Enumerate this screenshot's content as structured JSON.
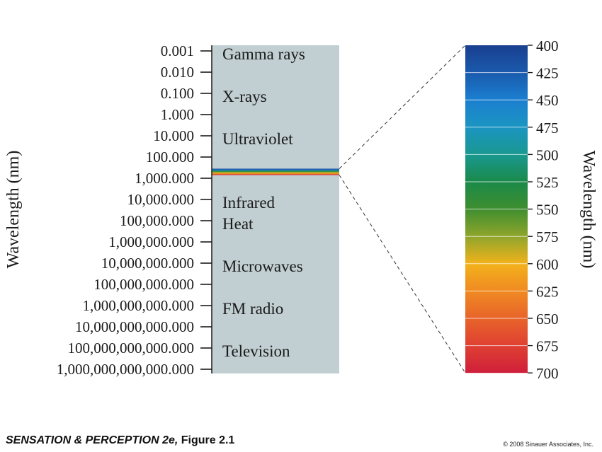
{
  "left_axis": {
    "label": "Wavelength (nm)",
    "ticks": [
      "0.001",
      "0.010",
      "0.100",
      "1.000",
      "10.000",
      "100.000",
      "1,000.000",
      "10,000.000",
      "100,000.000",
      "1,000,000.000",
      "10,000,000.000",
      "100,000,000.000",
      "1,000,000,000.000",
      "10,000,000,000.000",
      "100,000,000,000.000",
      "1,000,000,000,000.000"
    ]
  },
  "bands": [
    {
      "label": "Gamma rays",
      "tick": 0
    },
    {
      "label": "X-rays",
      "tick": 2
    },
    {
      "label": "Ultraviolet",
      "tick": 4
    },
    {
      "label": "Infrared",
      "tick": 7
    },
    {
      "label": "Heat",
      "tick": 8
    },
    {
      "label": "Microwaves",
      "tick": 10
    },
    {
      "label": "FM radio",
      "tick": 12
    },
    {
      "label": "Television",
      "tick": 14
    }
  ],
  "visible_band": {
    "from_tick": 5.55,
    "to_tick": 5.85
  },
  "right_axis": {
    "label": "Wavelength (nm)",
    "ticks": [
      "400",
      "425",
      "450",
      "475",
      "500",
      "525",
      "550",
      "575",
      "600",
      "625",
      "650",
      "675",
      "700"
    ],
    "colors": [
      "#1a3f8f",
      "#1a5aad",
      "#1b7fd0",
      "#1b95c2",
      "#199890",
      "#1a8a4a",
      "#3f8e2f",
      "#8fa52c",
      "#f2b21b",
      "#f08a22",
      "#e8642a",
      "#df4032",
      "#cf1f3a"
    ]
  },
  "colors": {
    "spectrum_bar": "#c1ced2",
    "axis": "#1a1a1a",
    "dashed": "#333333"
  },
  "footer": {
    "book": "SENSATION & PERCEPTION 2e,",
    "figure": "Figure 2.1",
    "copyright": "© 2008 Sinauer Associates, Inc."
  }
}
